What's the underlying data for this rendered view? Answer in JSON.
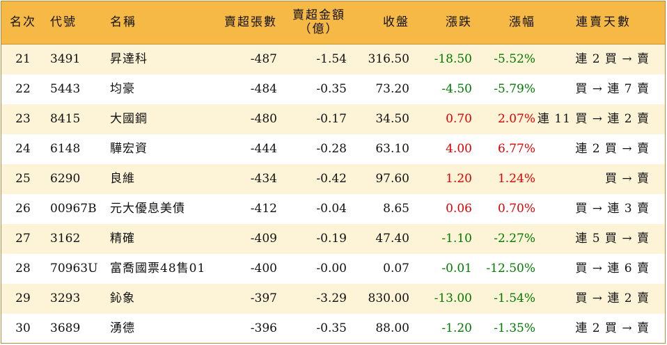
{
  "header": {
    "rank": "名次",
    "code": "代號",
    "name": "名稱",
    "net_sell_lots": "賣超張數",
    "net_sell_amount_line1": "賣超金額",
    "net_sell_amount_line2": "（億）",
    "close": "收盤",
    "change": "漲跌",
    "change_pct": "漲幅",
    "streak": "連賣天數"
  },
  "rows": [
    {
      "rank": "21",
      "code": "3491",
      "name": "昇達科",
      "lots": "-487",
      "amount": "-1.54",
      "close": "316.50",
      "change": "-18.50",
      "pct": "-5.52%",
      "dir": "neg",
      "streak": "連 2 買 → 賣"
    },
    {
      "rank": "22",
      "code": "5443",
      "name": "均豪",
      "lots": "-484",
      "amount": "-0.35",
      "close": "73.20",
      "change": "-4.50",
      "pct": "-5.79%",
      "dir": "neg",
      "streak": "買 → 連 7 賣"
    },
    {
      "rank": "23",
      "code": "8415",
      "name": "大國鋼",
      "lots": "-480",
      "amount": "-0.17",
      "close": "34.50",
      "change": "0.70",
      "pct": "2.07%",
      "dir": "pos",
      "streak": "連 11 買 → 連 2 賣"
    },
    {
      "rank": "24",
      "code": "6148",
      "name": "驊宏資",
      "lots": "-444",
      "amount": "-0.28",
      "close": "63.10",
      "change": "4.00",
      "pct": "6.77%",
      "dir": "pos",
      "streak": "連 2 買 → 賣"
    },
    {
      "rank": "25",
      "code": "6290",
      "name": "良維",
      "lots": "-434",
      "amount": "-0.42",
      "close": "97.60",
      "change": "1.20",
      "pct": "1.24%",
      "dir": "pos",
      "streak": "買 → 賣"
    },
    {
      "rank": "26",
      "code": "00967B",
      "name": "元大優息美債",
      "lots": "-412",
      "amount": "-0.04",
      "close": "8.65",
      "change": "0.06",
      "pct": "0.70%",
      "dir": "pos",
      "streak": "買 → 連 3 賣"
    },
    {
      "rank": "27",
      "code": "3162",
      "name": "精確",
      "lots": "-409",
      "amount": "-0.19",
      "close": "47.40",
      "change": "-1.10",
      "pct": "-2.27%",
      "dir": "neg",
      "streak": "連 5 買 → 賣"
    },
    {
      "rank": "28",
      "code": "70963U",
      "name": "富喬國票48售01",
      "lots": "-400",
      "amount": "-0.00",
      "close": "0.07",
      "change": "-0.01",
      "pct": "-12.50%",
      "dir": "neg",
      "streak": "買 → 連 6 賣"
    },
    {
      "rank": "29",
      "code": "3293",
      "name": "鈊象",
      "lots": "-397",
      "amount": "-3.29",
      "close": "830.00",
      "change": "-13.00",
      "pct": "-1.54%",
      "dir": "neg",
      "streak": "買 → 連 2 賣"
    },
    {
      "rank": "30",
      "code": "3689",
      "name": "湧德",
      "lots": "-396",
      "amount": "-0.35",
      "close": "88.00",
      "change": "-1.20",
      "pct": "-1.35%",
      "dir": "neg",
      "streak": "連 2 買 → 賣"
    }
  ],
  "colors": {
    "header_bg": "#f7b946",
    "alt_row_bg": "#fdf3d6",
    "up": "#e00000",
    "down": "#007a00"
  }
}
